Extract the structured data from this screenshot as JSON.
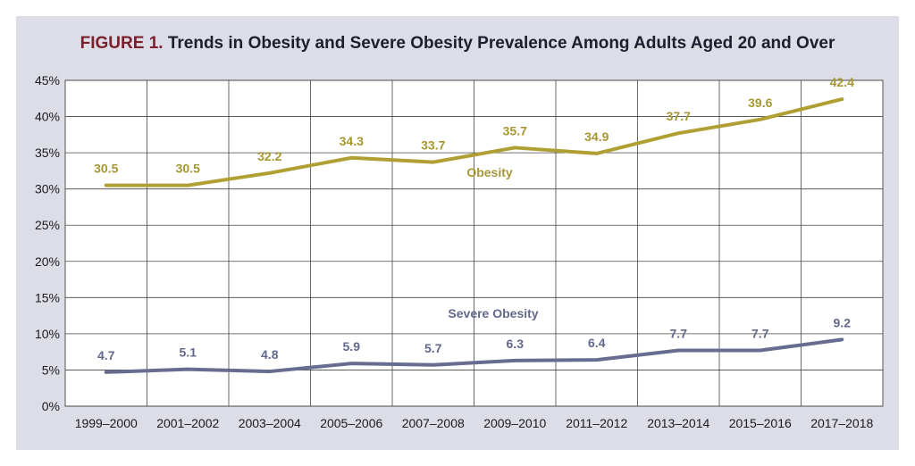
{
  "figure": {
    "prefix": "FIGURE 1.",
    "title": "Trends in Obesity and Severe Obesity Prevalence Among Adults Aged 20 and Over"
  },
  "colors": {
    "obesity": "#b0a034",
    "severe": "#666d90",
    "background": "#dcdde6",
    "title_accent": "#7a1f2b"
  },
  "chart_data": {
    "type": "line",
    "title": "Trends in Obesity and Severe Obesity Prevalence Among Adults Aged 20 and Over",
    "categories": [
      "1999–2000",
      "2001–2002",
      "2003–2004",
      "2005–2006",
      "2007–2008",
      "2009–2010",
      "2011–2012",
      "2013–2014",
      "2015–2016",
      "2017–2018"
    ],
    "series": [
      {
        "name": "Obesity",
        "values": [
          30.5,
          30.5,
          32.2,
          34.3,
          33.7,
          35.7,
          34.9,
          37.7,
          39.6,
          42.4
        ]
      },
      {
        "name": "Severe Obesity",
        "values": [
          4.7,
          5.1,
          4.8,
          5.9,
          5.7,
          6.3,
          6.4,
          7.7,
          7.7,
          9.2
        ]
      }
    ],
    "y_ticks": [
      "0%",
      "5%",
      "10%",
      "15%",
      "20%",
      "25%",
      "30%",
      "35%",
      "40%",
      "45%"
    ],
    "ylim": [
      0,
      45
    ],
    "grid": true,
    "xlabel": "",
    "ylabel": ""
  }
}
